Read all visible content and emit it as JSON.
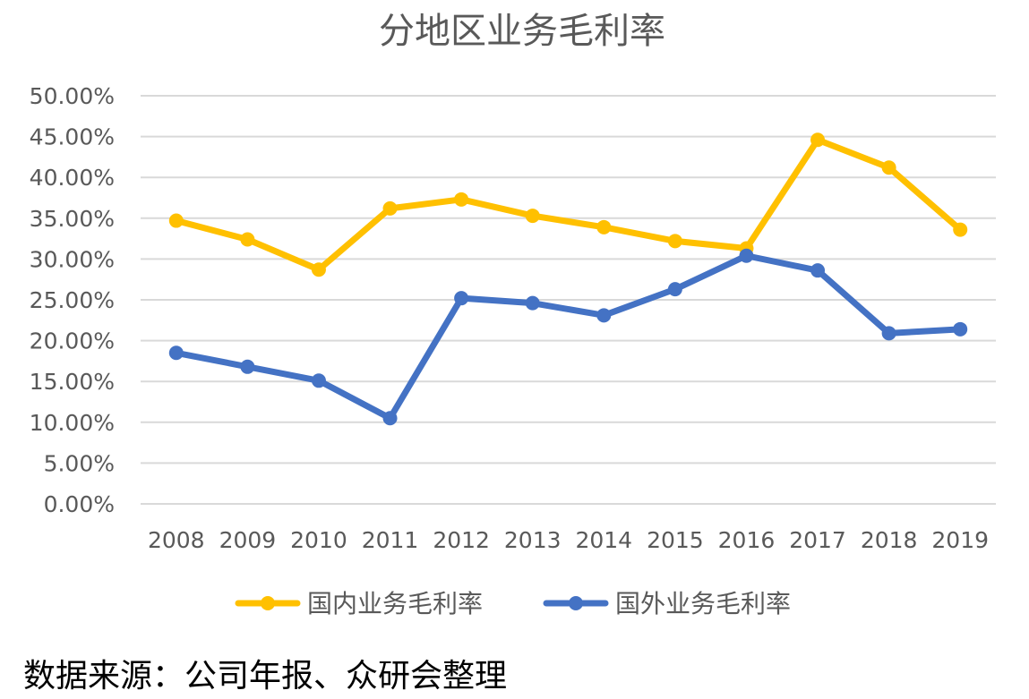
{
  "chart_data": {
    "type": "line",
    "title": "分地区业务毛利率",
    "xlabel": "",
    "ylabel": "",
    "categories": [
      "2008",
      "2009",
      "2010",
      "2011",
      "2012",
      "2013",
      "2014",
      "2015",
      "2016",
      "2017",
      "2018",
      "2019"
    ],
    "y_tick_labels": [
      "0.00%",
      "5.00%",
      "10.00%",
      "15.00%",
      "20.00%",
      "25.00%",
      "30.00%",
      "35.00%",
      "40.00%",
      "45.00%",
      "50.00%"
    ],
    "ylim": [
      0,
      0.5
    ],
    "y_step": 0.05,
    "grid": true,
    "legend_position": "bottom",
    "series": [
      {
        "name": "国内业务毛利率",
        "color": "#FFC000",
        "values": [
          0.347,
          0.324,
          0.287,
          0.362,
          0.373,
          0.353,
          0.339,
          0.322,
          0.313,
          0.446,
          0.412,
          0.336
        ]
      },
      {
        "name": "国外业务毛利率",
        "color": "#4472C4",
        "values": [
          0.185,
          0.168,
          0.151,
          0.105,
          0.252,
          0.246,
          0.231,
          0.263,
          0.304,
          0.286,
          0.209,
          0.214
        ]
      }
    ]
  },
  "source_note": "数据来源：公司年报、众研会整理"
}
